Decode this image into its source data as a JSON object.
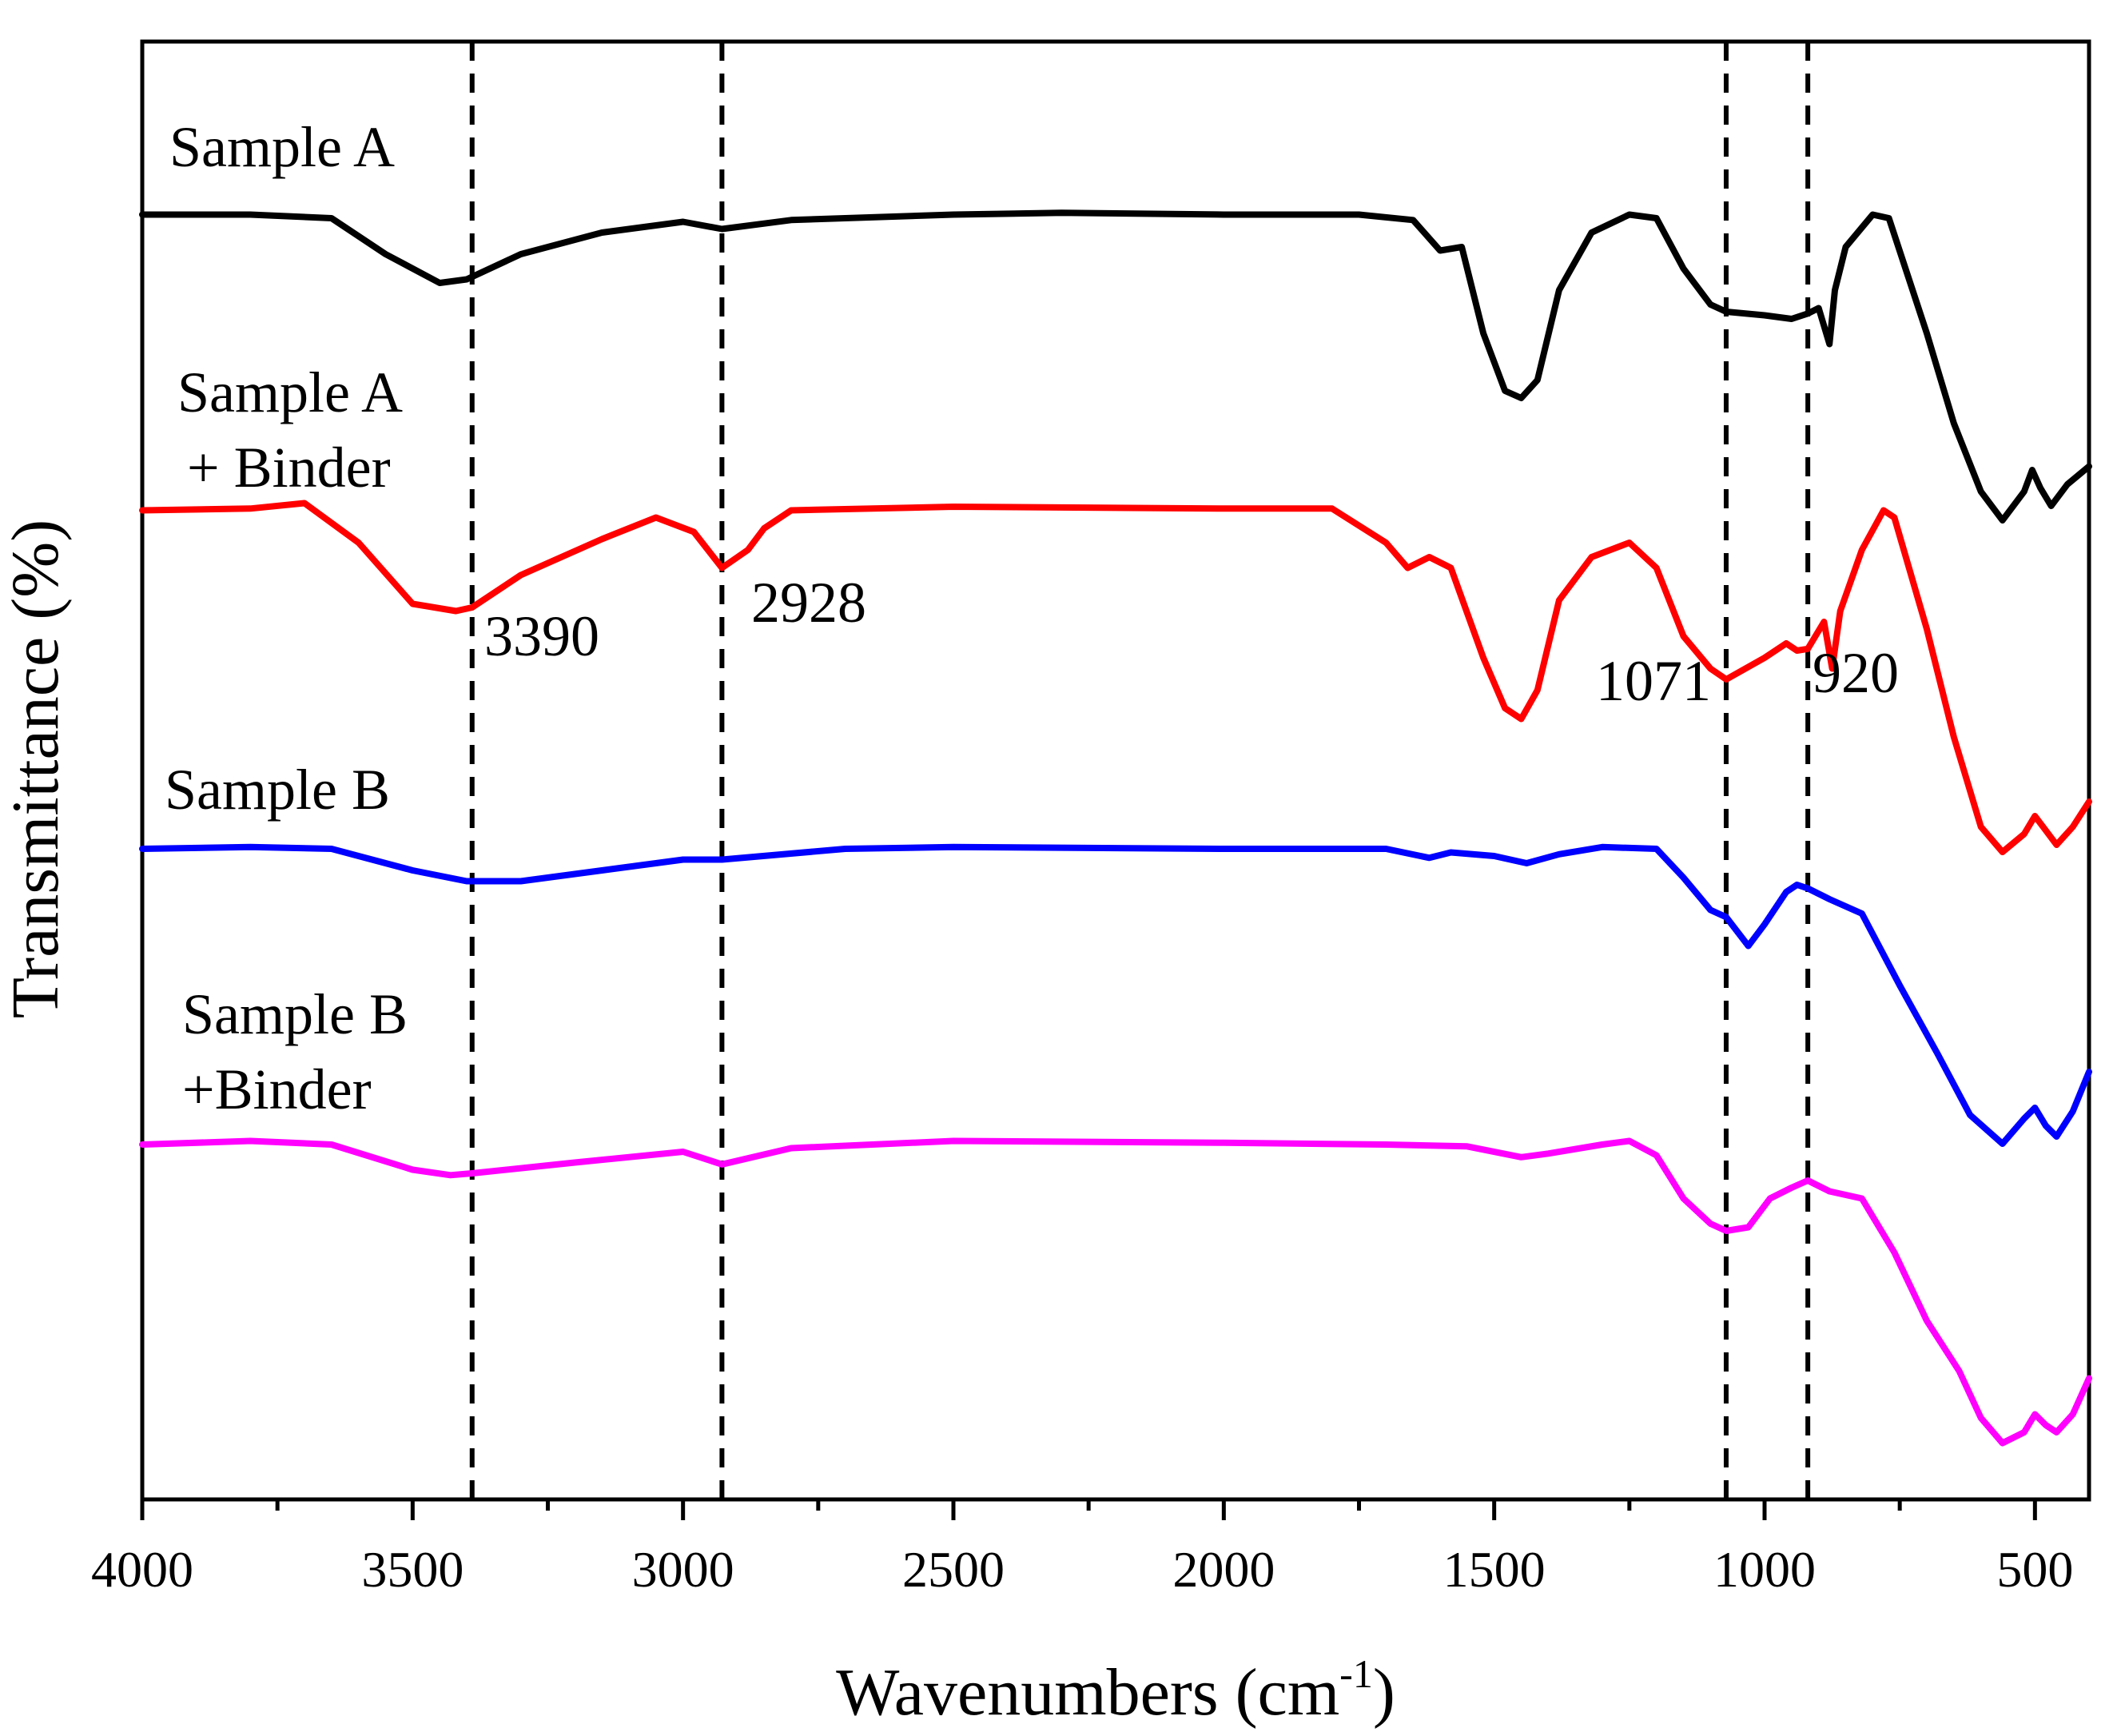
{
  "chart_data": {
    "type": "line",
    "title": "",
    "xlabel": "Wavenumbers (cm",
    "xlabel_sup": "-1",
    "xlabel_close": ")",
    "ylabel": "Transmittance (%)",
    "xlim": [
      4000,
      400
    ],
    "x_reversed": true,
    "xticks": [
      4000,
      3500,
      3000,
      2500,
      2000,
      1500,
      1000,
      500
    ],
    "xtick_labels": [
      "4000",
      "3500",
      "3000",
      "2500",
      "2000",
      "1500",
      "1000",
      "500"
    ],
    "y_ticks_shown": false,
    "grid": false,
    "reference_lines": [
      {
        "x": 3390,
        "label": "3390"
      },
      {
        "x": 2928,
        "label": "2928"
      },
      {
        "x": 1071,
        "label": "1071"
      },
      {
        "x": 920,
        "label": "920"
      }
    ],
    "series": [
      {
        "name": "Sample A",
        "label_lines": [
          "Sample A"
        ],
        "color": "#000000",
        "points": [
          [
            4000,
            0.3
          ],
          [
            3800,
            0.3
          ],
          [
            3650,
            0.2
          ],
          [
            3550,
            -0.8
          ],
          [
            3450,
            -1.6
          ],
          [
            3400,
            -1.5
          ],
          [
            3300,
            -0.8
          ],
          [
            3150,
            -0.2
          ],
          [
            3000,
            0.1
          ],
          [
            2928,
            -0.1
          ],
          [
            2800,
            0.15
          ],
          [
            2500,
            0.3
          ],
          [
            2300,
            0.35
          ],
          [
            2000,
            0.3
          ],
          [
            1750,
            0.3
          ],
          [
            1650,
            0.15
          ],
          [
            1600,
            -0.7
          ],
          [
            1560,
            -0.6
          ],
          [
            1520,
            -3
          ],
          [
            1480,
            -4.6
          ],
          [
            1450,
            -4.8
          ],
          [
            1420,
            -4.3
          ],
          [
            1380,
            -1.8
          ],
          [
            1320,
            -0.2
          ],
          [
            1250,
            0.3
          ],
          [
            1200,
            0.2
          ],
          [
            1150,
            -1.2
          ],
          [
            1100,
            -2.2
          ],
          [
            1071,
            -2.4
          ],
          [
            1000,
            -2.5
          ],
          [
            950,
            -2.6
          ],
          [
            920,
            -2.45
          ],
          [
            900,
            -2.3
          ],
          [
            880,
            -3.3
          ],
          [
            870,
            -1.8
          ],
          [
            850,
            -0.6
          ],
          [
            800,
            0.3
          ],
          [
            770,
            0.2
          ],
          [
            700,
            -3
          ],
          [
            650,
            -5.5
          ],
          [
            600,
            -7.4
          ],
          [
            560,
            -8.2
          ],
          [
            520,
            -7.4
          ],
          [
            505,
            -6.8
          ],
          [
            490,
            -7.3
          ],
          [
            470,
            -7.8
          ],
          [
            440,
            -7.2
          ],
          [
            400,
            -6.7
          ]
        ]
      },
      {
        "name": "Sample A + Binder",
        "label_lines": [
          "Sample A",
          "+ Binder"
        ],
        "color": "#ff0000",
        "points": [
          [
            4000,
            0.3
          ],
          [
            3800,
            0.35
          ],
          [
            3700,
            0.5
          ],
          [
            3600,
            -0.6
          ],
          [
            3500,
            -2.3
          ],
          [
            3420,
            -2.5
          ],
          [
            3390,
            -2.4
          ],
          [
            3300,
            -1.5
          ],
          [
            3150,
            -0.5
          ],
          [
            3050,
            0.1
          ],
          [
            2980,
            -0.3
          ],
          [
            2928,
            -1.3
          ],
          [
            2880,
            -0.8
          ],
          [
            2850,
            -0.2
          ],
          [
            2800,
            0.3
          ],
          [
            2500,
            0.4
          ],
          [
            2000,
            0.35
          ],
          [
            1800,
            0.35
          ],
          [
            1700,
            -0.6
          ],
          [
            1660,
            -1.3
          ],
          [
            1620,
            -1.0
          ],
          [
            1580,
            -1.3
          ],
          [
            1520,
            -3.8
          ],
          [
            1480,
            -5.2
          ],
          [
            1450,
            -5.5
          ],
          [
            1420,
            -4.7
          ],
          [
            1380,
            -2.2
          ],
          [
            1320,
            -1.0
          ],
          [
            1250,
            -0.6
          ],
          [
            1200,
            -1.3
          ],
          [
            1150,
            -3.2
          ],
          [
            1100,
            -4.1
          ],
          [
            1071,
            -4.4
          ],
          [
            1000,
            -3.8
          ],
          [
            960,
            -3.4
          ],
          [
            940,
            -3.6
          ],
          [
            920,
            -3.55
          ],
          [
            890,
            -2.8
          ],
          [
            875,
            -4.1
          ],
          [
            860,
            -2.5
          ],
          [
            820,
            -0.8
          ],
          [
            780,
            0.3
          ],
          [
            760,
            0.1
          ],
          [
            700,
            -3.0
          ],
          [
            650,
            -6.0
          ],
          [
            600,
            -8.5
          ],
          [
            560,
            -9.2
          ],
          [
            520,
            -8.7
          ],
          [
            500,
            -8.2
          ],
          [
            480,
            -8.6
          ],
          [
            460,
            -9.0
          ],
          [
            430,
            -8.5
          ],
          [
            400,
            -7.8
          ]
        ]
      },
      {
        "name": "Sample B",
        "label_lines": [
          "Sample B"
        ],
        "color": "#0000ff",
        "points": [
          [
            4000,
            0.0
          ],
          [
            3800,
            0.05
          ],
          [
            3650,
            0.0
          ],
          [
            3500,
            -0.6
          ],
          [
            3400,
            -0.9
          ],
          [
            3300,
            -0.9
          ],
          [
            3150,
            -0.6
          ],
          [
            3000,
            -0.3
          ],
          [
            2928,
            -0.3
          ],
          [
            2700,
            0.0
          ],
          [
            2500,
            0.05
          ],
          [
            2000,
            0.0
          ],
          [
            1700,
            0.0
          ],
          [
            1620,
            -0.25
          ],
          [
            1580,
            -0.1
          ],
          [
            1500,
            -0.2
          ],
          [
            1440,
            -0.4
          ],
          [
            1380,
            -0.15
          ],
          [
            1300,
            0.05
          ],
          [
            1200,
            0.0
          ],
          [
            1150,
            -0.8
          ],
          [
            1100,
            -1.7
          ],
          [
            1071,
            -1.9
          ],
          [
            1030,
            -2.7
          ],
          [
            1000,
            -2.1
          ],
          [
            960,
            -1.2
          ],
          [
            940,
            -1.0
          ],
          [
            920,
            -1.1
          ],
          [
            880,
            -1.4
          ],
          [
            820,
            -1.8
          ],
          [
            750,
            -3.8
          ],
          [
            680,
            -5.7
          ],
          [
            620,
            -7.4
          ],
          [
            560,
            -8.2
          ],
          [
            520,
            -7.5
          ],
          [
            500,
            -7.2
          ],
          [
            480,
            -7.7
          ],
          [
            460,
            -8.0
          ],
          [
            430,
            -7.3
          ],
          [
            400,
            -6.2
          ]
        ]
      },
      {
        "name": "Sample B +Binder",
        "label_lines": [
          "Sample B",
          "+Binder"
        ],
        "color": "#ff00ff",
        "points": [
          [
            4000,
            0.0
          ],
          [
            3800,
            0.1
          ],
          [
            3650,
            0.0
          ],
          [
            3500,
            -0.7
          ],
          [
            3430,
            -0.85
          ],
          [
            3390,
            -0.8
          ],
          [
            3200,
            -0.5
          ],
          [
            3000,
            -0.2
          ],
          [
            2928,
            -0.55
          ],
          [
            2800,
            -0.1
          ],
          [
            2500,
            0.1
          ],
          [
            2000,
            0.05
          ],
          [
            1700,
            0.0
          ],
          [
            1550,
            -0.05
          ],
          [
            1450,
            -0.35
          ],
          [
            1400,
            -0.25
          ],
          [
            1300,
            0.0
          ],
          [
            1250,
            0.1
          ],
          [
            1200,
            -0.3
          ],
          [
            1150,
            -1.5
          ],
          [
            1100,
            -2.2
          ],
          [
            1071,
            -2.4
          ],
          [
            1030,
            -2.3
          ],
          [
            990,
            -1.5
          ],
          [
            950,
            -1.2
          ],
          [
            920,
            -1.0
          ],
          [
            880,
            -1.3
          ],
          [
            820,
            -1.5
          ],
          [
            760,
            -3.0
          ],
          [
            700,
            -4.9
          ],
          [
            640,
            -6.3
          ],
          [
            600,
            -7.6
          ],
          [
            560,
            -8.3
          ],
          [
            520,
            -8.0
          ],
          [
            500,
            -7.5
          ],
          [
            480,
            -7.8
          ],
          [
            460,
            -8.0
          ],
          [
            430,
            -7.5
          ],
          [
            400,
            -6.5
          ]
        ]
      }
    ]
  }
}
